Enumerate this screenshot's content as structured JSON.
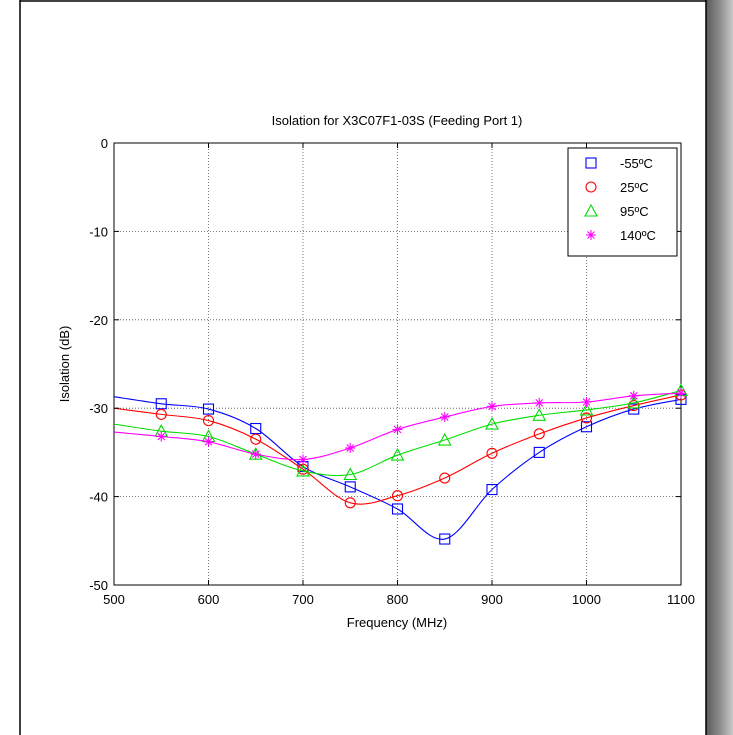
{
  "chart_data": {
    "type": "line",
    "title": "Isolation for X3C07F1-03S (Feeding Port 1)",
    "xlabel": "Frequency (MHz)",
    "ylabel": "Isolation (dB)",
    "xlim": [
      500,
      1100
    ],
    "ylim": [
      -50,
      0
    ],
    "xticks": [
      "500",
      "600",
      "700",
      "800",
      "900",
      "1000",
      "1100"
    ],
    "yticks": [
      "-50",
      "-40",
      "-30",
      "-20",
      "-10",
      "0"
    ],
    "grid": true,
    "legend_position": "top-right",
    "x": [
      500,
      550,
      600,
      650,
      700,
      750,
      800,
      850,
      900,
      950,
      1000,
      1050,
      1100
    ],
    "series": [
      {
        "name": "-55ºC",
        "color": "#0000ff",
        "marker": "square",
        "x": [
          500,
          550,
          600,
          650,
          700,
          750,
          800,
          850,
          900,
          950,
          1000,
          1050,
          1100
        ],
        "values": [
          -28.7,
          -29.5,
          -30.1,
          -32.3,
          -36.6,
          -38.9,
          -41.4,
          -44.8,
          -39.2,
          -35.0,
          -32.1,
          -30.1,
          -29.0
        ]
      },
      {
        "name": "25ºC",
        "color": "#ff0000",
        "marker": "circle",
        "x": [
          500,
          550,
          600,
          650,
          700,
          750,
          800,
          850,
          900,
          950,
          1000,
          1050,
          1100
        ],
        "values": [
          -30.0,
          -30.7,
          -31.4,
          -33.5,
          -36.9,
          -40.7,
          -39.9,
          -37.9,
          -35.1,
          -32.9,
          -31.1,
          -29.7,
          -28.5
        ]
      },
      {
        "name": "95ºC",
        "color": "#00dd00",
        "marker": "triangle",
        "x": [
          500,
          550,
          600,
          650,
          700,
          750,
          800,
          850,
          900,
          950,
          1000,
          1050,
          1100
        ],
        "values": [
          -31.8,
          -32.6,
          -33.2,
          -35.2,
          -37.1,
          -37.5,
          -35.3,
          -33.6,
          -31.8,
          -30.8,
          -30.2,
          -29.4,
          -28.0
        ]
      },
      {
        "name": "140ºC",
        "color": "#ff00ff",
        "marker": "asterisk",
        "x": [
          500,
          550,
          600,
          650,
          700,
          750,
          800,
          850,
          900,
          950,
          1000,
          1050,
          1100
        ],
        "values": [
          -32.7,
          -33.2,
          -33.8,
          -35.2,
          -35.8,
          -34.5,
          -32.4,
          -31.0,
          -29.8,
          -29.4,
          -29.3,
          -28.6,
          -28.3
        ]
      }
    ]
  }
}
